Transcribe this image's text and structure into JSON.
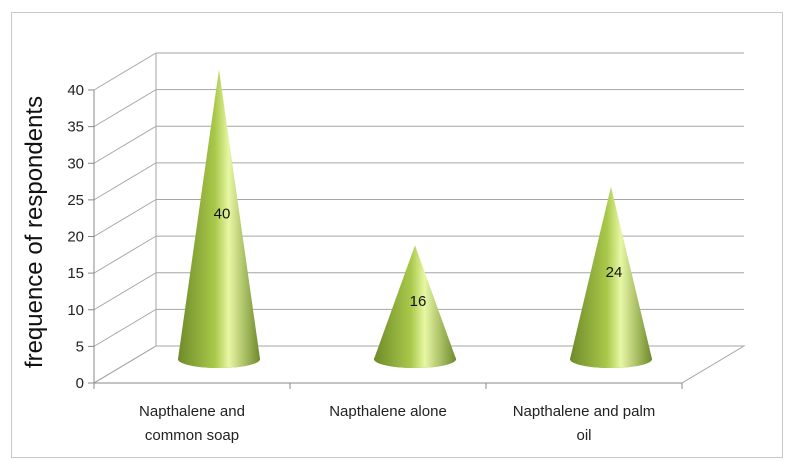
{
  "chart_data": {
    "type": "bar",
    "shape": "cone",
    "three_d": true,
    "categories": [
      [
        "Napthalene and",
        "common soap"
      ],
      [
        "Napthalene alone"
      ],
      [
        "Napthalene and palm",
        "oil"
      ]
    ],
    "values": [
      40,
      16,
      24
    ],
    "data_labels": [
      "40",
      "16",
      "24"
    ],
    "title": "",
    "xlabel": "",
    "ylabel": "frequence of respondents",
    "ylim": [
      0,
      40
    ],
    "yticks": [
      "0",
      "5",
      "10",
      "15",
      "20",
      "25",
      "30",
      "35",
      "40"
    ],
    "grid": true,
    "legend": "none",
    "colors": {
      "cone_dark": "#6f8a2a",
      "cone_mid": "#a9c94a",
      "cone_light": "#e7f7a4",
      "grid": "#a6a6a6",
      "text": "#222222"
    }
  }
}
